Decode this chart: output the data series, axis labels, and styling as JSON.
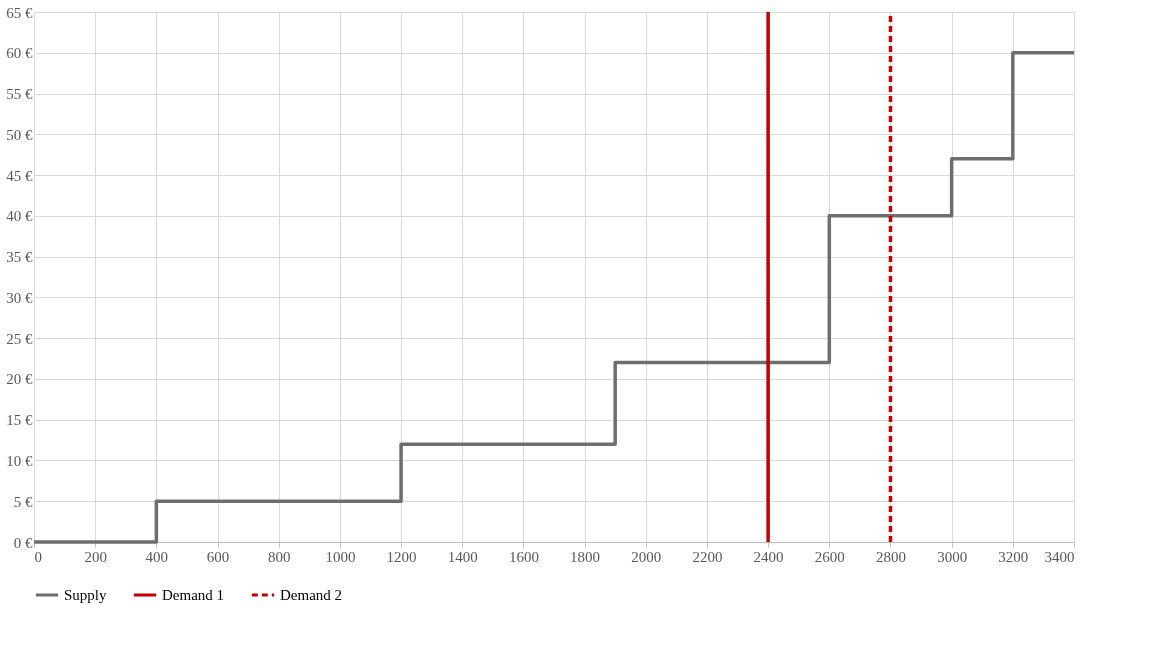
{
  "chart_data": {
    "type": "step",
    "xlim": [
      0,
      3400
    ],
    "xticks": [
      0,
      200,
      400,
      600,
      800,
      1000,
      1200,
      1400,
      1600,
      1800,
      2000,
      2200,
      2400,
      2600,
      2800,
      3000,
      3200,
      3400
    ],
    "ylim": [
      0,
      65
    ],
    "yticks": [
      {
        "value": 0,
        "label": "0 €"
      },
      {
        "value": 5,
        "label": "5 €"
      },
      {
        "value": 10,
        "label": "10 €"
      },
      {
        "value": 15,
        "label": "15 €"
      },
      {
        "value": 20,
        "label": "20 €"
      },
      {
        "value": 25,
        "label": "25 €"
      },
      {
        "value": 30,
        "label": "30 €"
      },
      {
        "value": 35,
        "label": "35 €"
      },
      {
        "value": 40,
        "label": "40 €"
      },
      {
        "value": 45,
        "label": "45 €"
      },
      {
        "value": 50,
        "label": "50 €"
      },
      {
        "value": 55,
        "label": "55 €"
      },
      {
        "value": 60,
        "label": "60 €"
      },
      {
        "value": 65,
        "label": "65 €"
      }
    ],
    "grid": true,
    "legend": "bottom",
    "marker": "none",
    "series": [
      {
        "name": "Supply",
        "color": "#6e6e6e",
        "line_style": "solid",
        "x": [
          0,
          400,
          1200,
          1900,
          2600,
          3000,
          3200,
          3400
        ],
        "values": [
          0,
          5,
          12,
          22,
          40,
          47,
          60,
          60
        ]
      },
      {
        "name": "Demand 1",
        "type": "line",
        "color": "#c00000",
        "line_style": "solid",
        "x": [
          2400,
          2400
        ],
        "values": [
          0,
          65
        ]
      },
      {
        "name": "Demand 2",
        "type": "line",
        "color": "#c00000",
        "line_style": "dashed",
        "x": [
          2800,
          2800
        ],
        "values": [
          0,
          65
        ]
      }
    ]
  }
}
